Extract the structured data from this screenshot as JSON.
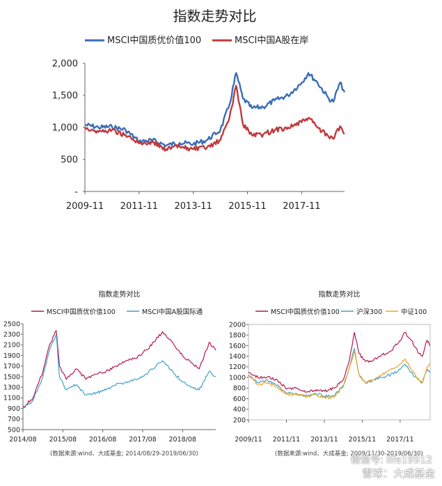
{
  "colors": {
    "blue": "#3a6db7",
    "red": "#c0393b",
    "crimson": "#b5194a",
    "lightblue": "#3fa1c9",
    "orange": "#f0a52a",
    "axis": "#666666"
  },
  "watermark": {
    "text": "雪球：大成基金",
    "wechat": "微信号: life19912"
  },
  "chart_data": [
    {
      "type": "line",
      "title": "指数走势对比",
      "x_ticks": [
        "2009-11",
        "2011-11",
        "2013-11",
        "2015-11",
        "2017-11"
      ],
      "y_ticks": [
        "2,000",
        "1,500",
        "1,000",
        "500",
        "-"
      ],
      "ylim": [
        0,
        2000
      ],
      "xlim": [
        "2009-11",
        "2019-06"
      ],
      "legend_position": "top",
      "x": [
        "2009-11",
        "2010-05",
        "2010-11",
        "2011-05",
        "2011-11",
        "2012-05",
        "2012-11",
        "2013-05",
        "2013-11",
        "2014-05",
        "2014-11",
        "2015-03",
        "2015-06",
        "2015-09",
        "2016-01",
        "2016-06",
        "2016-11",
        "2017-05",
        "2017-11",
        "2018-02",
        "2018-06",
        "2018-11",
        "2019-01",
        "2019-04",
        "2019-06"
      ],
      "series": [
        {
          "name": "MSCI中国质优价值100",
          "color": "blue",
          "values": [
            1040,
            1000,
            1010,
            960,
            780,
            800,
            720,
            760,
            740,
            800,
            960,
            1350,
            1850,
            1450,
            1300,
            1320,
            1420,
            1500,
            1700,
            1850,
            1700,
            1450,
            1400,
            1700,
            1550
          ]
        },
        {
          "name": "MSCI中国A股在岸",
          "color": "red",
          "values": [
            1000,
            930,
            960,
            880,
            750,
            770,
            660,
            700,
            660,
            680,
            800,
            1150,
            1650,
            1050,
            880,
            890,
            960,
            1000,
            1080,
            1150,
            1000,
            850,
            820,
            1020,
            900
          ]
        }
      ]
    },
    {
      "type": "line",
      "title": "指数走势对比",
      "source": "(数据来源:wind、大成基金; 2014/08/29-2019/06/30)",
      "x_ticks": [
        "2014/08",
        "2015/08",
        "2016/08",
        "2017/08",
        "2018/08"
      ],
      "y_ticks": [
        "2500",
        "2300",
        "2100",
        "1900",
        "1700",
        "1500",
        "1300",
        "1100",
        "900",
        "700",
        "500"
      ],
      "ylim": [
        500,
        2500
      ],
      "xlim": [
        "2014/08",
        "2019/06"
      ],
      "legend_position": "top",
      "x": [
        "2014/08",
        "2014/11",
        "2015/02",
        "2015/04",
        "2015/06",
        "2015/07",
        "2015/09",
        "2015/12",
        "2016/03",
        "2016/06",
        "2016/09",
        "2016/12",
        "2017/03",
        "2017/06",
        "2017/09",
        "2017/12",
        "2018/02",
        "2018/05",
        "2018/08",
        "2018/11",
        "2019/01",
        "2019/04",
        "2019/06"
      ],
      "series": [
        {
          "name": "MSCI中国质优价值100",
          "color": "crimson",
          "values": [
            920,
            1100,
            1600,
            2100,
            2370,
            1700,
            1450,
            1650,
            1450,
            1550,
            1600,
            1700,
            1800,
            1850,
            2000,
            2200,
            2350,
            2150,
            1900,
            1750,
            1650,
            2150,
            2000
          ]
        },
        {
          "name": "MSCI中国A股国际通",
          "color": "lightblue",
          "values": [
            910,
            1050,
            1500,
            2000,
            2300,
            1500,
            1250,
            1350,
            1150,
            1200,
            1250,
            1350,
            1400,
            1450,
            1550,
            1700,
            1800,
            1600,
            1400,
            1300,
            1250,
            1600,
            1500
          ]
        }
      ]
    },
    {
      "type": "line",
      "title": "指数走势对比",
      "source": "(数据来源:wind、大成基金; 2009/11/30-2019/06/30)",
      "x_ticks": [
        "2009/11",
        "2011/11",
        "2013/11",
        "2015/11",
        "2017/11"
      ],
      "y_ticks": [
        "2000",
        "1800",
        "1600",
        "1400",
        "1200",
        "1000",
        "800",
        "600",
        "400",
        "200"
      ],
      "ylim": [
        200,
        2000
      ],
      "xlim": [
        "2009/11",
        "2019/06"
      ],
      "legend_position": "top",
      "x": [
        "2009-11",
        "2010-05",
        "2010-11",
        "2011-05",
        "2011-11",
        "2012-05",
        "2012-11",
        "2013-05",
        "2013-11",
        "2014-05",
        "2014-11",
        "2015-03",
        "2015-06",
        "2015-09",
        "2016-01",
        "2016-06",
        "2016-11",
        "2017-05",
        "2017-11",
        "2018-02",
        "2018-06",
        "2018-11",
        "2019-01",
        "2019-04",
        "2019-06"
      ],
      "series": [
        {
          "name": "MSCI中国质优价值100",
          "color": "crimson",
          "values": [
            1100,
            1000,
            1010,
            960,
            780,
            800,
            720,
            760,
            740,
            800,
            960,
            1350,
            1850,
            1450,
            1300,
            1320,
            1420,
            1500,
            1700,
            1850,
            1700,
            1450,
            1400,
            1700,
            1600
          ]
        },
        {
          "name": "沪深300",
          "color": "lightblue",
          "values": [
            1050,
            900,
            950,
            850,
            700,
            700,
            650,
            700,
            650,
            650,
            850,
            1200,
            1550,
            1050,
            900,
            950,
            1000,
            1050,
            1150,
            1250,
            1100,
            950,
            900,
            1150,
            1100
          ]
        },
        {
          "name": "中证100",
          "color": "orange",
          "values": [
            1020,
            860,
            900,
            820,
            680,
            680,
            640,
            680,
            620,
            630,
            820,
            1200,
            1500,
            1050,
            900,
            950,
            1050,
            1150,
            1250,
            1350,
            1150,
            950,
            900,
            1200,
            1250
          ]
        }
      ]
    }
  ]
}
